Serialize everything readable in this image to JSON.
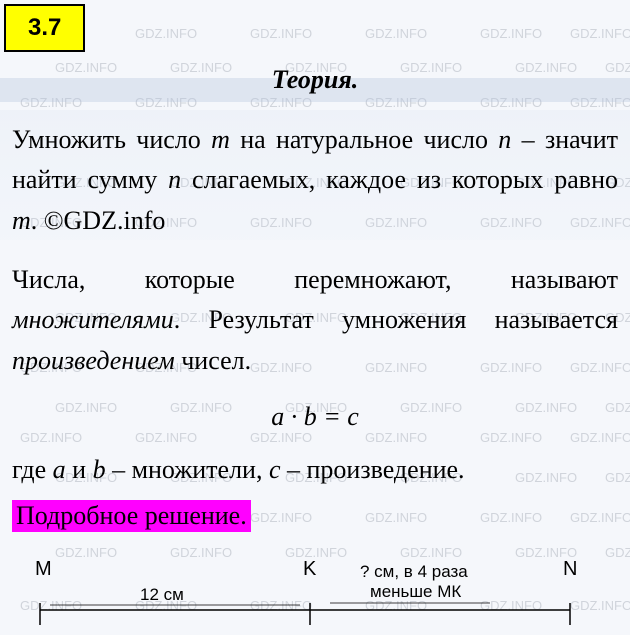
{
  "problem_number": "3.7",
  "watermark_text": "GDZ.INFO",
  "watermark_color": "#d0d4db",
  "watermark_fontsize": 13,
  "theory": {
    "header": "Теория.",
    "para1_parts": {
      "t1": "Умножить число ",
      "m": "m",
      "t2": " на натуральное число ",
      "n": "n",
      "t3": " – значит найти сумму ",
      "n2": "n",
      "t4": " слагаемых, каж­дое из которых равно ",
      "m2": "m",
      "t5": ". ©GDZ.info"
    },
    "para2_parts": {
      "t1": "Числа, которые перемножают, называют ",
      "i1": "множителями",
      "t2": ". Результат умножения называется ",
      "i2": "произведением",
      "t3": " чисел."
    },
    "formula": "a · b = c",
    "para3_parts": {
      "t1": "где ",
      "a": "a",
      "t2": " и ",
      "b": "b",
      "t3": " – множители, ",
      "c": "c",
      "t4": " – произведение."
    }
  },
  "solution_label": "Подробное решение.",
  "diagram": {
    "points": {
      "M": "M",
      "K": "K",
      "N": "N"
    },
    "mk_label": "12 см",
    "kn_label_line1": "? см, в 4 раза",
    "kn_label_line2": "меньше МК",
    "line_color": "#000000",
    "line_width": 1.5,
    "tick_height": 14,
    "positions": {
      "M": 10,
      "K": 280,
      "N": 540
    }
  },
  "colors": {
    "problem_bg": "#ffff00",
    "solution_bg": "#ff00ff",
    "page_bg": "#f5f7fb",
    "text": "#000000"
  },
  "fontsize_body": 26
}
